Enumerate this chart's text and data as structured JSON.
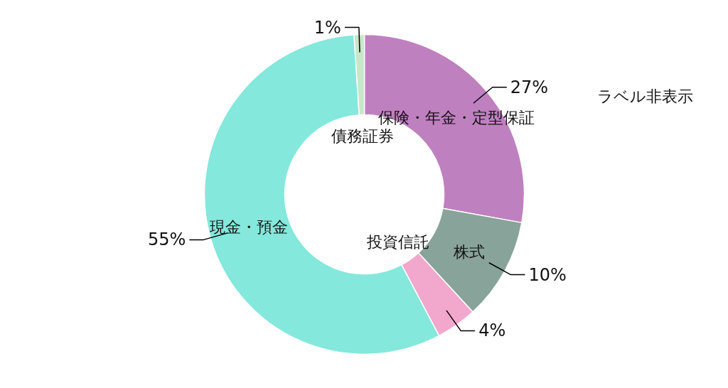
{
  "chart_data": {
    "type": "donut",
    "categories": [
      "保険・年金・定型保証",
      "株式",
      "投資信託",
      "現金・預金",
      "債務証券"
    ],
    "values": [
      27,
      10,
      4,
      55,
      1
    ],
    "colors": [
      "#bf80c0",
      "#88a39a",
      "#f2a7cc",
      "#84e8dc",
      "#c8e6c8"
    ],
    "value_labels": [
      "27%",
      "10%",
      "4%",
      "55%",
      "1%"
    ],
    "annotations": [
      "ラベル非表示"
    ]
  }
}
